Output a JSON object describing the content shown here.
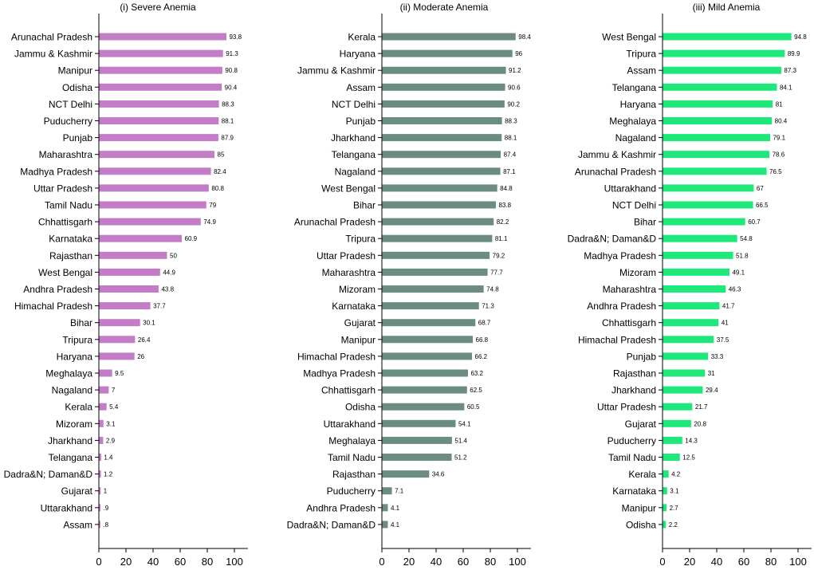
{
  "chart_data": [
    {
      "type": "bar",
      "orientation": "horizontal",
      "title": "(i) Severe Anemia",
      "color": "#c37cc6",
      "xlim": [
        0,
        110
      ],
      "xticks": [
        "0",
        "20",
        "40",
        "60",
        "80",
        "100"
      ],
      "categories": [
        "Arunachal Pradesh",
        "Jammu & Kashmir",
        "Manipur",
        "Odisha",
        "NCT Delhi",
        "Puducherry",
        "Punjab",
        "Maharashtra",
        "Madhya Pradesh",
        "Uttar Pradesh",
        "Tamil Nadu",
        "Chhattisgarh",
        "Karnataka",
        "Rajasthan",
        "West Bengal",
        "Andhra Pradesh",
        "Himachal Pradesh",
        "Bihar",
        "Tripura",
        "Haryana",
        "Meghalaya",
        "Nagaland",
        "Kerala",
        "Mizoram",
        "Jharkhand",
        "Telangana",
        "Dadra&N; Daman&D",
        "Gujarat",
        "Uttarakhand",
        "Assam"
      ],
      "values": [
        93.8,
        91.3,
        90.8,
        90.4,
        88.3,
        88.1,
        87.9,
        85,
        82.4,
        80.8,
        79,
        74.9,
        60.9,
        50,
        44.9,
        43.8,
        37.7,
        30.1,
        26.4,
        26,
        9.5,
        7,
        5.4,
        3.1,
        2.9,
        1.4,
        1.2,
        1,
        0.9,
        0.8
      ],
      "labels": [
        "93.8",
        "91.3",
        "90.8",
        "90.4",
        "88.3",
        "88.1",
        "87.9",
        "85",
        "82.4",
        "80.8",
        "79",
        "74.9",
        "60.9",
        "50",
        "44.9",
        "43.8",
        "37.7",
        "30.1",
        "26.4",
        "26",
        "9.5",
        "7",
        "5.4",
        "3.1",
        "2.9",
        "1.4",
        "1.2",
        "1",
        ".9",
        ".8"
      ]
    },
    {
      "type": "bar",
      "orientation": "horizontal",
      "title": "(ii) Moderate Anemia",
      "color": "#6b8c80",
      "xlim": [
        0,
        110
      ],
      "xticks": [
        "0",
        "20",
        "40",
        "60",
        "80",
        "100"
      ],
      "categories": [
        "Kerala",
        "Haryana",
        "Jammu & Kashmir",
        "Assam",
        "NCT Delhi",
        "Punjab",
        "Jharkhand",
        "Telangana",
        "Nagaland",
        "West Bengal",
        "Bihar",
        "Arunachal Pradesh",
        "Tripura",
        "Uttar Pradesh",
        "Maharashtra",
        "Mizoram",
        "Karnataka",
        "Gujarat",
        "Manipur",
        "Himachal Pradesh",
        "Madhya Pradesh",
        "Chhattisgarh",
        "Odisha",
        "Uttarakhand",
        "Meghalaya",
        "Tamil Nadu",
        "Rajasthan",
        "Puducherry",
        "Andhra Pradesh",
        "Dadra&N; Daman&D"
      ],
      "values": [
        98.4,
        96,
        91.2,
        90.6,
        90.2,
        88.3,
        88.1,
        87.4,
        87.1,
        84.8,
        83.8,
        82.2,
        81.1,
        79.2,
        77.7,
        74.8,
        71.3,
        68.7,
        66.8,
        66.2,
        63.2,
        62.5,
        60.5,
        54.1,
        51.4,
        51.2,
        34.6,
        7.1,
        4.1,
        4.1
      ],
      "labels": [
        "98.4",
        "96",
        "91.2",
        "90.6",
        "90.2",
        "88.3",
        "88.1",
        "87.4",
        "87.1",
        "84.8",
        "83.8",
        "82.2",
        "81.1",
        "79.2",
        "77.7",
        "74.8",
        "71.3",
        "68.7",
        "66.8",
        "66.2",
        "63.2",
        "62.5",
        "60.5",
        "54.1",
        "51.4",
        "51.2",
        "34.6",
        "7.1",
        "4.1",
        "4.1"
      ]
    },
    {
      "type": "bar",
      "orientation": "horizontal",
      "title": "(iii) Mild Anemia",
      "color": "#1ee87a",
      "xlim": [
        0,
        110
      ],
      "xticks": [
        "0",
        "20",
        "40",
        "60",
        "80",
        "100"
      ],
      "categories": [
        "West Bengal",
        "Tripura",
        "Assam",
        "Telangana",
        "Haryana",
        "Meghalaya",
        "Nagaland",
        "Jammu & Kashmir",
        "Arunachal Pradesh",
        "Uttarakhand",
        "NCT Delhi",
        "Bihar",
        "Dadra&N; Daman&D",
        "Madhya Pradesh",
        "Mizoram",
        "Maharashtra",
        "Andhra Pradesh",
        "Chhattisgarh",
        "Himachal Pradesh",
        "Punjab",
        "Rajasthan",
        "Jharkhand",
        "Uttar Pradesh",
        "Gujarat",
        "Puducherry",
        "Tamil Nadu",
        "Kerala",
        "Karnataka",
        "Manipur",
        "Odisha"
      ],
      "values": [
        94.8,
        89.9,
        87.3,
        84.1,
        81,
        80.4,
        79.1,
        78.6,
        76.5,
        67,
        66.5,
        60.7,
        54.8,
        51.8,
        49.1,
        46.3,
        41.7,
        41,
        37.5,
        33.3,
        31,
        29.4,
        21.7,
        20.8,
        14.3,
        12.5,
        4.2,
        3.1,
        2.7,
        2.2
      ],
      "labels": [
        "94.8",
        "89.9",
        "87.3",
        "84.1",
        "81",
        "80.4",
        "79.1",
        "78.6",
        "76.5",
        "67",
        "66.5",
        "60.7",
        "54.8",
        "51.8",
        "49.1",
        "46.3",
        "41.7",
        "41",
        "37.5",
        "33.3",
        "31",
        "29.4",
        "21.7",
        "20.8",
        "14.3",
        "12.5",
        "4.2",
        "3.1",
        "2.7",
        "2.2"
      ]
    }
  ]
}
